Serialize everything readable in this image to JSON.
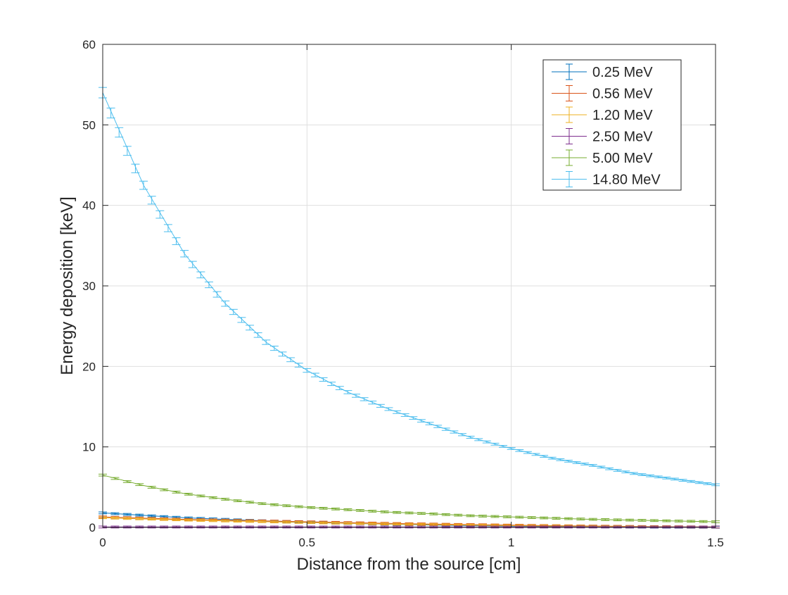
{
  "chart_data": {
    "type": "line",
    "title": "",
    "xlabel": "Distance from the source [cm]",
    "ylabel": "Energy deposition [keV]",
    "xlim": [
      0,
      1.5
    ],
    "ylim": [
      0,
      60
    ],
    "xticks": [
      0,
      0.5,
      1,
      1.5
    ],
    "xtick_labels": [
      "0",
      "0.5",
      "1",
      "1.5"
    ],
    "yticks": [
      0,
      10,
      20,
      30,
      40,
      50,
      60
    ],
    "ytick_labels": [
      "0",
      "10",
      "20",
      "30",
      "40",
      "50",
      "60"
    ],
    "grid": true,
    "error_bars": true,
    "legend_position": "top-right",
    "x": [
      0,
      0.1,
      0.2,
      0.3,
      0.4,
      0.5,
      0.6,
      0.7,
      0.8,
      0.9,
      1.0,
      1.1,
      1.2,
      1.3,
      1.4,
      1.5
    ],
    "series": [
      {
        "name": "0.25 MeV",
        "color": "#0072BD",
        "values": [
          1.8,
          1.5,
          1.2,
          1.0,
          0.8,
          0.65,
          0.5,
          0.4,
          0.3,
          0.22,
          0.16,
          0.12,
          0.08,
          0.05,
          0.03,
          0.02
        ]
      },
      {
        "name": "0.56 MeV",
        "color": "#D95319",
        "values": [
          1.3,
          1.15,
          1.0,
          0.9,
          0.8,
          0.7,
          0.6,
          0.5,
          0.42,
          0.35,
          0.28,
          0.22,
          0.17,
          0.12,
          0.08,
          0.05
        ]
      },
      {
        "name": "1.20 MeV",
        "color": "#EDB120",
        "values": [
          1.2,
          1.05,
          0.92,
          0.8,
          0.7,
          0.6,
          0.5,
          0.42,
          0.35,
          0.28,
          0.22,
          0.17,
          0.13,
          0.1,
          0.07,
          0.05
        ]
      },
      {
        "name": "2.50 MeV",
        "color": "#7E2F8E",
        "values": [
          0.05,
          0.05,
          0.05,
          0.05,
          0.05,
          0.05,
          0.05,
          0.05,
          0.05,
          0.05,
          0.05,
          0.05,
          0.05,
          0.05,
          0.05,
          0.05
        ]
      },
      {
        "name": "5.00 MeV",
        "color": "#77AC30",
        "values": [
          6.5,
          5.2,
          4.2,
          3.5,
          2.9,
          2.5,
          2.2,
          1.9,
          1.7,
          1.45,
          1.3,
          1.15,
          1.0,
          0.9,
          0.8,
          0.7
        ]
      },
      {
        "name": "14.80 MeV",
        "color": "#4DBEEE",
        "values": [
          54.0,
          42.5,
          34.0,
          27.8,
          23.0,
          19.5,
          16.8,
          14.7,
          12.9,
          11.2,
          9.8,
          8.6,
          7.7,
          6.7,
          6.0,
          5.3
        ]
      }
    ]
  }
}
